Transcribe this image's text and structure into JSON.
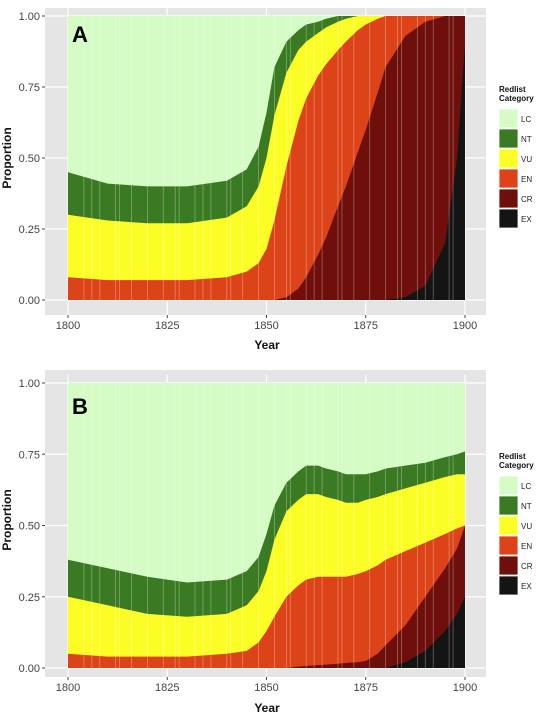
{
  "chart_data": [
    {
      "type": "area",
      "panel_label": "A",
      "xlabel": "Year",
      "ylabel": "Proportion",
      "xlim": [
        1800,
        1900
      ],
      "ylim": [
        0,
        1
      ],
      "xticks": [
        "1800",
        "1825",
        "1850",
        "1875",
        "1900"
      ],
      "yticks": [
        "0.00",
        "0.25",
        "0.50",
        "0.75",
        "1.00"
      ],
      "legend_title": "Redlist Category",
      "legend_position": "right",
      "categories": [
        "LC",
        "NT",
        "VU",
        "EN",
        "CR",
        "EX"
      ],
      "colors": {
        "LC": "#d4fcc4",
        "NT": "#3a7a22",
        "VU": "#fdfd26",
        "EN": "#dc4318",
        "CR": "#6e0f0b",
        "EX": "#141414"
      },
      "x": [
        1800,
        1810,
        1820,
        1830,
        1840,
        1845,
        1848,
        1850,
        1852,
        1855,
        1858,
        1860,
        1863,
        1865,
        1868,
        1870,
        1873,
        1875,
        1878,
        1880,
        1885,
        1890,
        1895,
        1898,
        1900
      ],
      "cumulative_thresholds": [
        {
          "name": "EX",
          "values": [
            0,
            0,
            0,
            0,
            0,
            0,
            0,
            0,
            0,
            0,
            0,
            0,
            0,
            0,
            0,
            0,
            0,
            0,
            0,
            0,
            0.01,
            0.05,
            0.2,
            0.5,
            0.9
          ]
        },
        {
          "name": "CR",
          "values": [
            0,
            0,
            0,
            0,
            0,
            0,
            0,
            0,
            0,
            0.01,
            0.04,
            0.08,
            0.16,
            0.22,
            0.33,
            0.4,
            0.52,
            0.6,
            0.73,
            0.82,
            0.93,
            0.98,
            1.0,
            1.0,
            1.0
          ]
        },
        {
          "name": "EN",
          "values": [
            0.08,
            0.07,
            0.07,
            0.07,
            0.08,
            0.1,
            0.13,
            0.18,
            0.28,
            0.47,
            0.63,
            0.71,
            0.79,
            0.83,
            0.88,
            0.91,
            0.95,
            0.97,
            0.99,
            1.0,
            1.0,
            1.0,
            1.0,
            1.0,
            1.0
          ]
        },
        {
          "name": "VU",
          "values": [
            0.3,
            0.28,
            0.27,
            0.27,
            0.29,
            0.33,
            0.4,
            0.5,
            0.65,
            0.8,
            0.88,
            0.91,
            0.94,
            0.96,
            0.98,
            0.99,
            1.0,
            1.0,
            1.0,
            1.0,
            1.0,
            1.0,
            1.0,
            1.0,
            1.0
          ]
        },
        {
          "name": "NT",
          "values": [
            0.45,
            0.41,
            0.4,
            0.4,
            0.42,
            0.46,
            0.54,
            0.66,
            0.82,
            0.91,
            0.95,
            0.97,
            0.98,
            0.99,
            1.0,
            1.0,
            1.0,
            1.0,
            1.0,
            1.0,
            1.0,
            1.0,
            1.0,
            1.0,
            1.0
          ]
        }
      ]
    },
    {
      "type": "area",
      "panel_label": "B",
      "xlabel": "Year",
      "ylabel": "Proportion",
      "xlim": [
        1800,
        1900
      ],
      "ylim": [
        0,
        1
      ],
      "xticks": [
        "1800",
        "1825",
        "1850",
        "1875",
        "1900"
      ],
      "yticks": [
        "0.00",
        "0.25",
        "0.50",
        "0.75",
        "1.00"
      ],
      "legend_title": "Redlist Category",
      "legend_position": "right",
      "categories": [
        "LC",
        "NT",
        "VU",
        "EN",
        "CR",
        "EX"
      ],
      "colors": {
        "LC": "#d4fcc4",
        "NT": "#3a7a22",
        "VU": "#fdfd26",
        "EN": "#dc4318",
        "CR": "#6e0f0b",
        "EX": "#141414"
      },
      "x": [
        1800,
        1810,
        1820,
        1830,
        1840,
        1845,
        1848,
        1850,
        1852,
        1855,
        1858,
        1860,
        1863,
        1865,
        1868,
        1870,
        1873,
        1875,
        1878,
        1880,
        1885,
        1890,
        1895,
        1898,
        1900
      ],
      "cumulative_thresholds": [
        {
          "name": "EX",
          "values": [
            0,
            0,
            0,
            0,
            0,
            0,
            0,
            0,
            0,
            0,
            0,
            0,
            0,
            0,
            0,
            0,
            0,
            0,
            0,
            0,
            0.02,
            0.06,
            0.13,
            0.19,
            0.25
          ]
        },
        {
          "name": "CR",
          "values": [
            0,
            0,
            0,
            0,
            0,
            0,
            0,
            0,
            0,
            0,
            0.005,
            0.007,
            0.01,
            0.012,
            0.015,
            0.018,
            0.02,
            0.025,
            0.05,
            0.08,
            0.15,
            0.25,
            0.35,
            0.42,
            0.5
          ]
        },
        {
          "name": "EN",
          "values": [
            0.05,
            0.04,
            0.04,
            0.04,
            0.05,
            0.06,
            0.09,
            0.13,
            0.18,
            0.25,
            0.29,
            0.31,
            0.32,
            0.32,
            0.32,
            0.32,
            0.33,
            0.34,
            0.36,
            0.38,
            0.41,
            0.44,
            0.47,
            0.49,
            0.5
          ]
        },
        {
          "name": "VU",
          "values": [
            0.25,
            0.22,
            0.19,
            0.18,
            0.19,
            0.22,
            0.27,
            0.34,
            0.45,
            0.55,
            0.59,
            0.61,
            0.61,
            0.6,
            0.59,
            0.58,
            0.58,
            0.59,
            0.6,
            0.61,
            0.63,
            0.65,
            0.67,
            0.68,
            0.68
          ]
        },
        {
          "name": "NT",
          "values": [
            0.38,
            0.35,
            0.32,
            0.3,
            0.31,
            0.34,
            0.39,
            0.47,
            0.57,
            0.65,
            0.69,
            0.71,
            0.71,
            0.7,
            0.69,
            0.68,
            0.68,
            0.68,
            0.69,
            0.7,
            0.71,
            0.72,
            0.74,
            0.75,
            0.76
          ]
        }
      ]
    }
  ]
}
